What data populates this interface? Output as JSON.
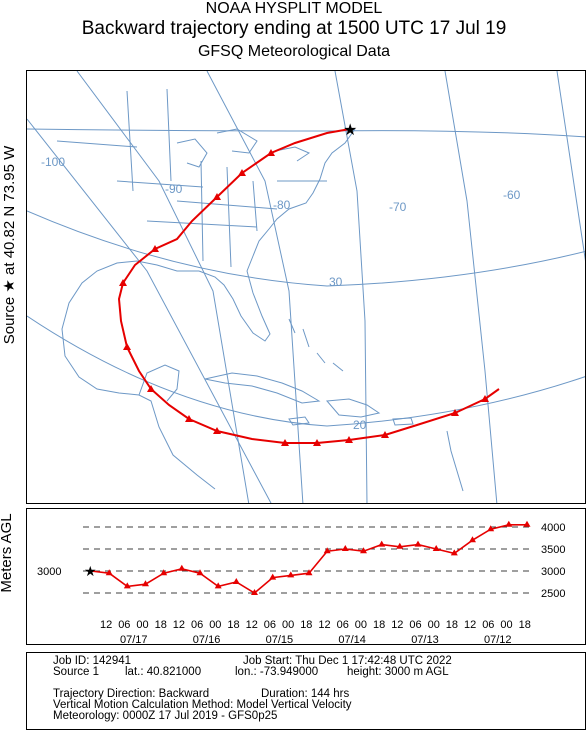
{
  "title": {
    "line1": "NOAA HYSPLIT MODEL",
    "line2": "Backward trajectory ending at 1500 UTC 17 Jul 19",
    "line3": "GFSQ Meteorological Data"
  },
  "side_label": "Source ★ at 40.82 N 73.95 W",
  "map": {
    "lon_labels": [
      "-100",
      "-90",
      "-80",
      "-70",
      "-60"
    ],
    "lat_labels": [
      "30",
      "20"
    ],
    "colors": {
      "trajectory": "#e60000",
      "map_lines": "#6d98c6"
    }
  },
  "vertical": {
    "ylabel": "Meters AGL",
    "start_label": "3000",
    "y_ticks": [
      "4000",
      "3500",
      "3000",
      "2500"
    ],
    "hour_ticks": [
      "12",
      "06",
      "00",
      "18",
      "12",
      "06",
      "00",
      "18",
      "12",
      "06",
      "00",
      "18",
      "12",
      "06",
      "00",
      "18",
      "12",
      "06",
      "00",
      "18",
      "12",
      "06",
      "00",
      "18"
    ],
    "date_labels": [
      "07/17",
      "07/16",
      "07/15",
      "07/14",
      "07/13",
      "07/12"
    ]
  },
  "chart_data": {
    "type": "line",
    "title": "",
    "xlabel": "",
    "ylabel": "Meters AGL",
    "x_direction": "backward in time, left = 2019-07-17 15 UTC, right = 2019-07-11 15 UTC",
    "ylim": [
      2300,
      4150
    ],
    "series": [
      {
        "name": "",
        "hours_back": [
          0,
          6,
          12,
          18,
          24,
          30,
          36,
          42,
          48,
          54,
          60,
          66,
          72,
          78,
          84,
          90,
          96,
          102,
          108,
          114,
          120,
          126,
          132,
          138,
          144
        ],
        "height_m": [
          3000,
          2950,
          2650,
          2700,
          2950,
          3050,
          2950,
          2650,
          2750,
          2500,
          2850,
          2900,
          2950,
          3450,
          3500,
          3450,
          3600,
          3550,
          3600,
          3500,
          3400,
          3700,
          3950,
          4050,
          4050
        ]
      }
    ]
  },
  "info": {
    "job_id": "Job ID: 142941",
    "job_start": "Job Start: Thu Dec  1 17:42:48 UTC 2022",
    "source": "Source 1",
    "lat": "lat.: 40.821000",
    "lon": "lon.: -73.949000",
    "height": "height: 3000 m AGL",
    "direction": "Trajectory Direction: Backward",
    "duration": "Duration: 144 hrs",
    "vertical_motion": "Vertical Motion Calculation Method:      Model Vertical Velocity",
    "meteorology": "Meteorology: 0000Z 17 Jul 2019 - GFS0p25"
  }
}
